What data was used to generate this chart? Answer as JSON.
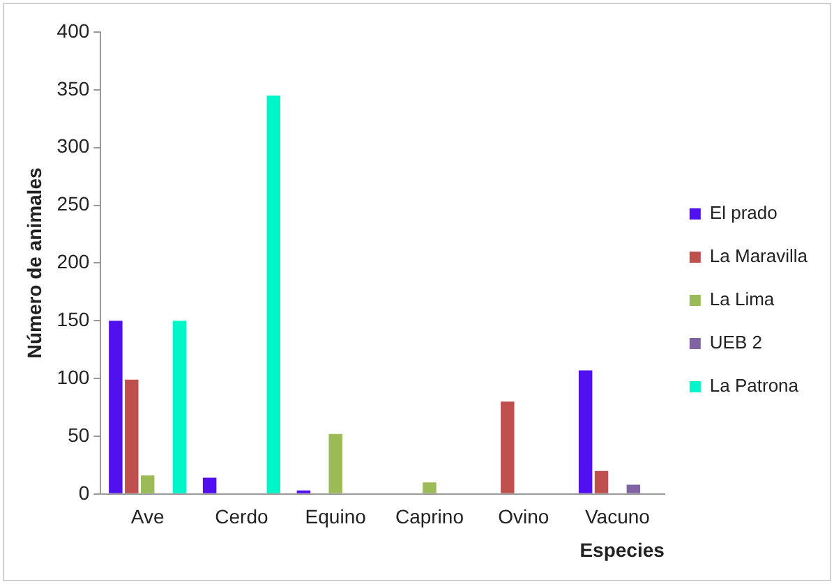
{
  "chart_data": {
    "type": "bar",
    "xlabel": "Especies",
    "ylabel": "Número de animales",
    "categories": [
      "Ave",
      "Cerdo",
      "Equino",
      "Caprino",
      "Ovino",
      "Vacuno"
    ],
    "series": [
      {
        "name": "El prado",
        "color": "#5010f0",
        "values": [
          150,
          14,
          3,
          null,
          null,
          107
        ]
      },
      {
        "name": "La Maravilla",
        "color": "#c0504d",
        "values": [
          99,
          null,
          null,
          null,
          80,
          20
        ]
      },
      {
        "name": "La Lima",
        "color": "#9bbb59",
        "values": [
          16,
          null,
          52,
          10,
          null,
          null
        ]
      },
      {
        "name": "UEB 2",
        "color": "#8064a2",
        "values": [
          null,
          null,
          null,
          null,
          null,
          8
        ]
      },
      {
        "name": "La Patrona",
        "color": "#00f5c8",
        "values": [
          150,
          345,
          null,
          null,
          null,
          null
        ]
      }
    ],
    "ylim": [
      0,
      400
    ],
    "yticks": [
      0,
      50,
      100,
      150,
      200,
      250,
      300,
      350,
      400
    ],
    "grid": false,
    "legend": "right"
  }
}
